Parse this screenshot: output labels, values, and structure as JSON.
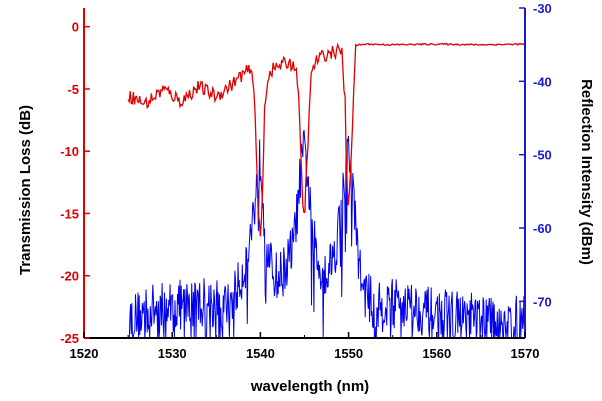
{
  "chart_data": {
    "type": "line",
    "xlabel": "wavelength (nm)",
    "ylabel_left": "Transmission Loss (dB)",
    "ylabel_right": "Reflection Intensity (dBm)",
    "xlim": [
      1520,
      1570
    ],
    "ylim_left": [
      -25,
      1.5
    ],
    "ylim_right": [
      -75,
      -30
    ],
    "x_ticks": [
      "1520",
      "1530",
      "1540",
      "1550",
      "1560",
      "1570"
    ],
    "y_left_ticks": [
      "0",
      "-5",
      "-10",
      "-15",
      "-20",
      "-25"
    ],
    "y_right_ticks": [
      "-30",
      "-40",
      "-50",
      "-60",
      "-70"
    ],
    "colors": {
      "transmission": "#e00000",
      "reflection": "#0000ee",
      "left_axis": "#e00000",
      "right_axis": "#1a1acc",
      "bottom_axis": "#000000"
    },
    "series": [
      {
        "axis": "left",
        "x": [
          1525.0,
          1527.0,
          1529.0,
          1531.0,
          1533.0,
          1535.0,
          1537.0,
          1538.0,
          1538.8,
          1539.3,
          1539.6,
          1539.8,
          1540.0,
          1540.2,
          1540.5,
          1541.0,
          1542.0,
          1543.0,
          1543.8,
          1544.3,
          1544.6,
          1544.8,
          1545.0,
          1545.3,
          1545.8,
          1546.5,
          1547.5,
          1548.5,
          1549.2,
          1549.6,
          1549.8,
          1550.0,
          1550.3,
          1550.8,
          1552.0,
          1555.0,
          1560.0,
          1565.0,
          1570.0
        ],
        "y": [
          -5.5,
          -6.2,
          -5.0,
          -6.0,
          -4.8,
          -5.6,
          -4.5,
          -3.8,
          -3.5,
          -4.8,
          -11.5,
          -15.5,
          -17.0,
          -14.5,
          -6.0,
          -3.6,
          -3.2,
          -2.9,
          -3.0,
          -4.5,
          -11.0,
          -14.5,
          -15.2,
          -10.5,
          -3.5,
          -2.6,
          -2.2,
          -2.0,
          -1.8,
          -6.0,
          -13.0,
          -14.5,
          -10.0,
          -1.5,
          -1.4,
          -1.45,
          -1.4,
          -1.45,
          -1.4
        ]
      },
      {
        "axis": "right",
        "x": [
          1525.0,
          1528.0,
          1531.0,
          1534.0,
          1536.0,
          1537.5,
          1538.5,
          1539.0,
          1539.5,
          1539.8,
          1540.0,
          1540.2,
          1540.5,
          1541.0,
          1542.0,
          1543.0,
          1543.8,
          1544.3,
          1544.7,
          1545.0,
          1545.3,
          1545.8,
          1546.5,
          1547.5,
          1548.5,
          1549.2,
          1549.7,
          1550.0,
          1550.3,
          1550.8,
          1551.5,
          1553.0,
          1556.0,
          1559.0,
          1562.0,
          1565.0,
          1568.0,
          1570.0
        ],
        "y": [
          -72.5,
          -71.0,
          -70.5,
          -70.0,
          -71.0,
          -68.0,
          -64.0,
          -60.0,
          -55.0,
          -52.0,
          -50.5,
          -53.0,
          -60.0,
          -65.0,
          -67.0,
          -65.0,
          -62.0,
          -56.0,
          -51.0,
          -49.5,
          -52.0,
          -60.0,
          -65.0,
          -66.0,
          -63.0,
          -57.0,
          -52.0,
          -49.5,
          -52.0,
          -60.0,
          -68.0,
          -71.0,
          -70.0,
          -71.5,
          -72.0,
          -72.5,
          -73.0,
          -72.5
        ]
      }
    ]
  }
}
